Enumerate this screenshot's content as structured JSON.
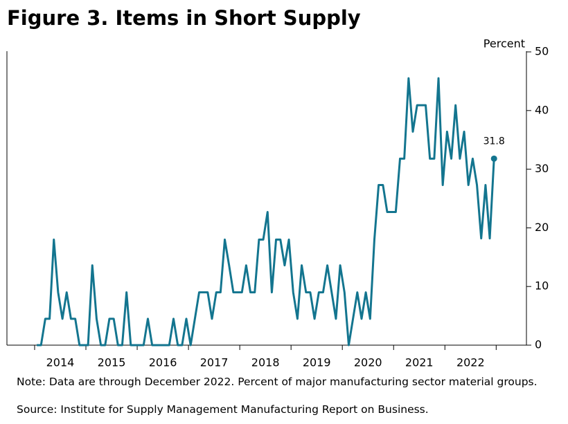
{
  "chart_data": {
    "type": "line",
    "title": "Figure 3. Items in Short Supply",
    "ylabel": "Percent",
    "x": [
      2014.042,
      2014.125,
      2014.208,
      2014.292,
      2014.375,
      2014.458,
      2014.542,
      2014.625,
      2014.708,
      2014.792,
      2014.875,
      2014.958,
      2015.042,
      2015.125,
      2015.208,
      2015.292,
      2015.375,
      2015.458,
      2015.542,
      2015.625,
      2015.708,
      2015.792,
      2015.875,
      2015.958,
      2016.042,
      2016.125,
      2016.208,
      2016.292,
      2016.375,
      2016.458,
      2016.542,
      2016.625,
      2016.708,
      2016.792,
      2016.875,
      2016.958,
      2017.042,
      2017.125,
      2017.208,
      2017.292,
      2017.375,
      2017.458,
      2017.542,
      2017.625,
      2017.708,
      2017.792,
      2017.875,
      2017.958,
      2018.042,
      2018.125,
      2018.208,
      2018.292,
      2018.375,
      2018.458,
      2018.542,
      2018.625,
      2018.708,
      2018.792,
      2018.875,
      2018.958,
      2019.042,
      2019.125,
      2019.208,
      2019.292,
      2019.375,
      2019.458,
      2019.542,
      2019.625,
      2019.708,
      2019.792,
      2019.875,
      2019.958,
      2020.042,
      2020.125,
      2020.208,
      2020.292,
      2020.375,
      2020.458,
      2020.542,
      2020.625,
      2020.708,
      2020.792,
      2020.875,
      2020.958,
      2021.042,
      2021.125,
      2021.208,
      2021.292,
      2021.375,
      2021.458,
      2021.542,
      2021.625,
      2021.708,
      2021.792,
      2021.875,
      2021.958,
      2022.042,
      2022.125,
      2022.208,
      2022.292,
      2022.375,
      2022.458,
      2022.542,
      2022.625,
      2022.708,
      2022.792,
      2022.875,
      2022.958
    ],
    "values": [
      0,
      0,
      4.5,
      4.5,
      18,
      9,
      4.5,
      9,
      4.5,
      4.5,
      0,
      0,
      0,
      13.6,
      4.5,
      0,
      0,
      4.5,
      4.5,
      0,
      0,
      9,
      0,
      0,
      0,
      0,
      4.5,
      0,
      0,
      0,
      0,
      0,
      4.5,
      0,
      0,
      4.5,
      0,
      4.5,
      9,
      9,
      9,
      4.5,
      9,
      9,
      18,
      13.6,
      9,
      9,
      9,
      13.6,
      9,
      9,
      18,
      18,
      22.7,
      9,
      18,
      18,
      13.6,
      18,
      9,
      4.5,
      13.6,
      9,
      9,
      4.5,
      9,
      9,
      13.6,
      9,
      4.5,
      13.6,
      9,
      0,
      4.5,
      9,
      4.5,
      9,
      4.5,
      18,
      27.3,
      27.3,
      22.7,
      22.7,
      22.7,
      31.8,
      31.8,
      45.5,
      36.4,
      40.9,
      40.9,
      40.9,
      31.8,
      31.8,
      45.5,
      27.3,
      36.4,
      31.8,
      40.9,
      31.8,
      36.4,
      27.3,
      31.8,
      27.3,
      18.2,
      27.3,
      18.2,
      31.8
    ],
    "color": "#13758f",
    "label_last": true,
    "xlim": [
      2013.46,
      2023.59
    ],
    "xticks": [
      {
        "value": 2014.5,
        "label": "2014"
      },
      {
        "value": 2015.5,
        "label": "2015"
      },
      {
        "value": 2016.5,
        "label": "2016"
      },
      {
        "value": 2017.5,
        "label": "2017"
      },
      {
        "value": 2018.5,
        "label": "2018"
      },
      {
        "value": 2019.5,
        "label": "2019"
      },
      {
        "value": 2020.5,
        "label": "2020"
      },
      {
        "value": 2021.5,
        "label": "2021"
      },
      {
        "value": 2022.5,
        "label": "2022"
      }
    ],
    "ylim": [
      0,
      50
    ],
    "yticks": [
      0,
      10,
      20,
      30,
      40,
      50
    ],
    "grid": false
  },
  "note": "Note: Data are through December 2022. Percent of major manufacturing sector material groups.",
  "source": "Source: Institute for Supply Management Manufacturing Report on Business."
}
